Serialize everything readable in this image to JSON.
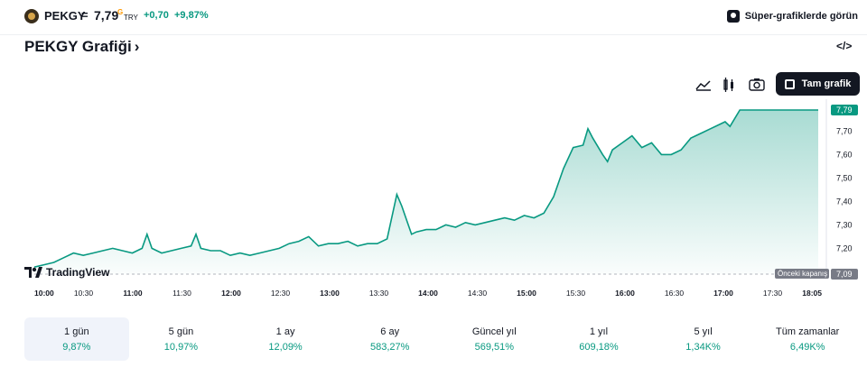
{
  "header": {
    "symbol": "PEKGY",
    "separator": "=",
    "price": "7,79",
    "price_marker": "G",
    "currency": "TRY",
    "change": "+0,70",
    "change_percent": "+9,87%",
    "super_charts_label": "Süper-grafiklerde görün"
  },
  "title": "PEKGY Grafiği",
  "title_chevron": "›",
  "embed_icon_label": "</>",
  "toolbar": {
    "full_chart_label": "Tam grafik"
  },
  "colors": {
    "accent": "#089981",
    "dark": "#131722",
    "muted": "#787b86"
  },
  "chart_data": {
    "type": "area",
    "x_labels": [
      "10:00",
      "10:30",
      "11:00",
      "11:30",
      "12:00",
      "12:30",
      "13:00",
      "13:30",
      "14:00",
      "14:30",
      "15:00",
      "15:30",
      "16:00",
      "16:30",
      "17:00",
      "17:30",
      "18:05"
    ],
    "x_bold": [
      "10:00",
      "11:00",
      "12:00",
      "13:00",
      "14:00",
      "15:00",
      "16:00",
      "17:00",
      "18:05"
    ],
    "y_ticks": [
      "7,70",
      "7,60",
      "7,50",
      "7,40",
      "7,30",
      "7,20"
    ],
    "y_tick_values": [
      7.7,
      7.6,
      7.5,
      7.4,
      7.3,
      7.2
    ],
    "ylim": [
      7.09,
      7.79
    ],
    "x_domain_hours": [
      10.0,
      18.0833
    ],
    "series": [
      {
        "x": [
          10.0,
          10.1,
          10.2,
          10.3,
          10.4,
          10.5,
          10.6,
          10.7,
          10.8,
          10.9,
          11.0,
          11.1,
          11.15,
          11.2,
          11.3,
          11.4,
          11.5,
          11.6,
          11.65,
          11.7,
          11.8,
          11.9,
          12.0,
          12.1,
          12.2,
          12.3,
          12.4,
          12.5,
          12.6,
          12.7,
          12.8,
          12.9,
          13.0,
          13.1,
          13.2,
          13.3,
          13.4,
          13.5,
          13.6,
          13.7,
          13.75,
          13.8,
          13.85,
          13.9,
          14.0,
          14.1,
          14.2,
          14.3,
          14.4,
          14.5,
          14.6,
          14.7,
          14.8,
          14.9,
          15.0,
          15.1,
          15.2,
          15.3,
          15.4,
          15.5,
          15.6,
          15.65,
          15.7,
          15.8,
          15.85,
          15.9,
          16.0,
          16.1,
          16.2,
          16.3,
          16.4,
          16.5,
          16.6,
          16.7,
          16.8,
          16.9,
          17.0,
          17.05,
          17.1,
          17.2,
          17.3,
          17.5,
          17.7,
          17.9,
          18.0
        ],
        "y": [
          7.12,
          7.13,
          7.14,
          7.16,
          7.18,
          7.17,
          7.18,
          7.19,
          7.2,
          7.19,
          7.18,
          7.2,
          7.26,
          7.2,
          7.18,
          7.19,
          7.2,
          7.21,
          7.26,
          7.2,
          7.19,
          7.19,
          7.17,
          7.18,
          7.17,
          7.18,
          7.19,
          7.2,
          7.22,
          7.23,
          7.25,
          7.21,
          7.22,
          7.22,
          7.23,
          7.21,
          7.22,
          7.22,
          7.24,
          7.43,
          7.38,
          7.32,
          7.26,
          7.27,
          7.28,
          7.28,
          7.3,
          7.29,
          7.31,
          7.3,
          7.31,
          7.32,
          7.33,
          7.32,
          7.34,
          7.33,
          7.35,
          7.42,
          7.54,
          7.63,
          7.64,
          7.71,
          7.67,
          7.6,
          7.57,
          7.62,
          7.65,
          7.68,
          7.63,
          7.65,
          7.6,
          7.6,
          7.62,
          7.67,
          7.69,
          7.71,
          7.73,
          7.74,
          7.72,
          7.79,
          7.79,
          7.79,
          7.79,
          7.79,
          7.79
        ]
      }
    ],
    "last_value_label": "7,79",
    "previous_close_label": "Önceki kapanış",
    "previous_close_value": "7,09",
    "previous_close": 7.09,
    "watermark": "TradingView"
  },
  "periods": [
    {
      "label": "1 gün",
      "value": "9,87%",
      "active": true
    },
    {
      "label": "5 gün",
      "value": "10,97%"
    },
    {
      "label": "1 ay",
      "value": "12,09%"
    },
    {
      "label": "6 ay",
      "value": "583,27%"
    },
    {
      "label": "Güncel yıl",
      "value": "569,51%"
    },
    {
      "label": "1 yıl",
      "value": "609,18%"
    },
    {
      "label": "5 yıl",
      "value": "1,34K%"
    },
    {
      "label": "Tüm zamanlar",
      "value": "6,49K%"
    }
  ]
}
